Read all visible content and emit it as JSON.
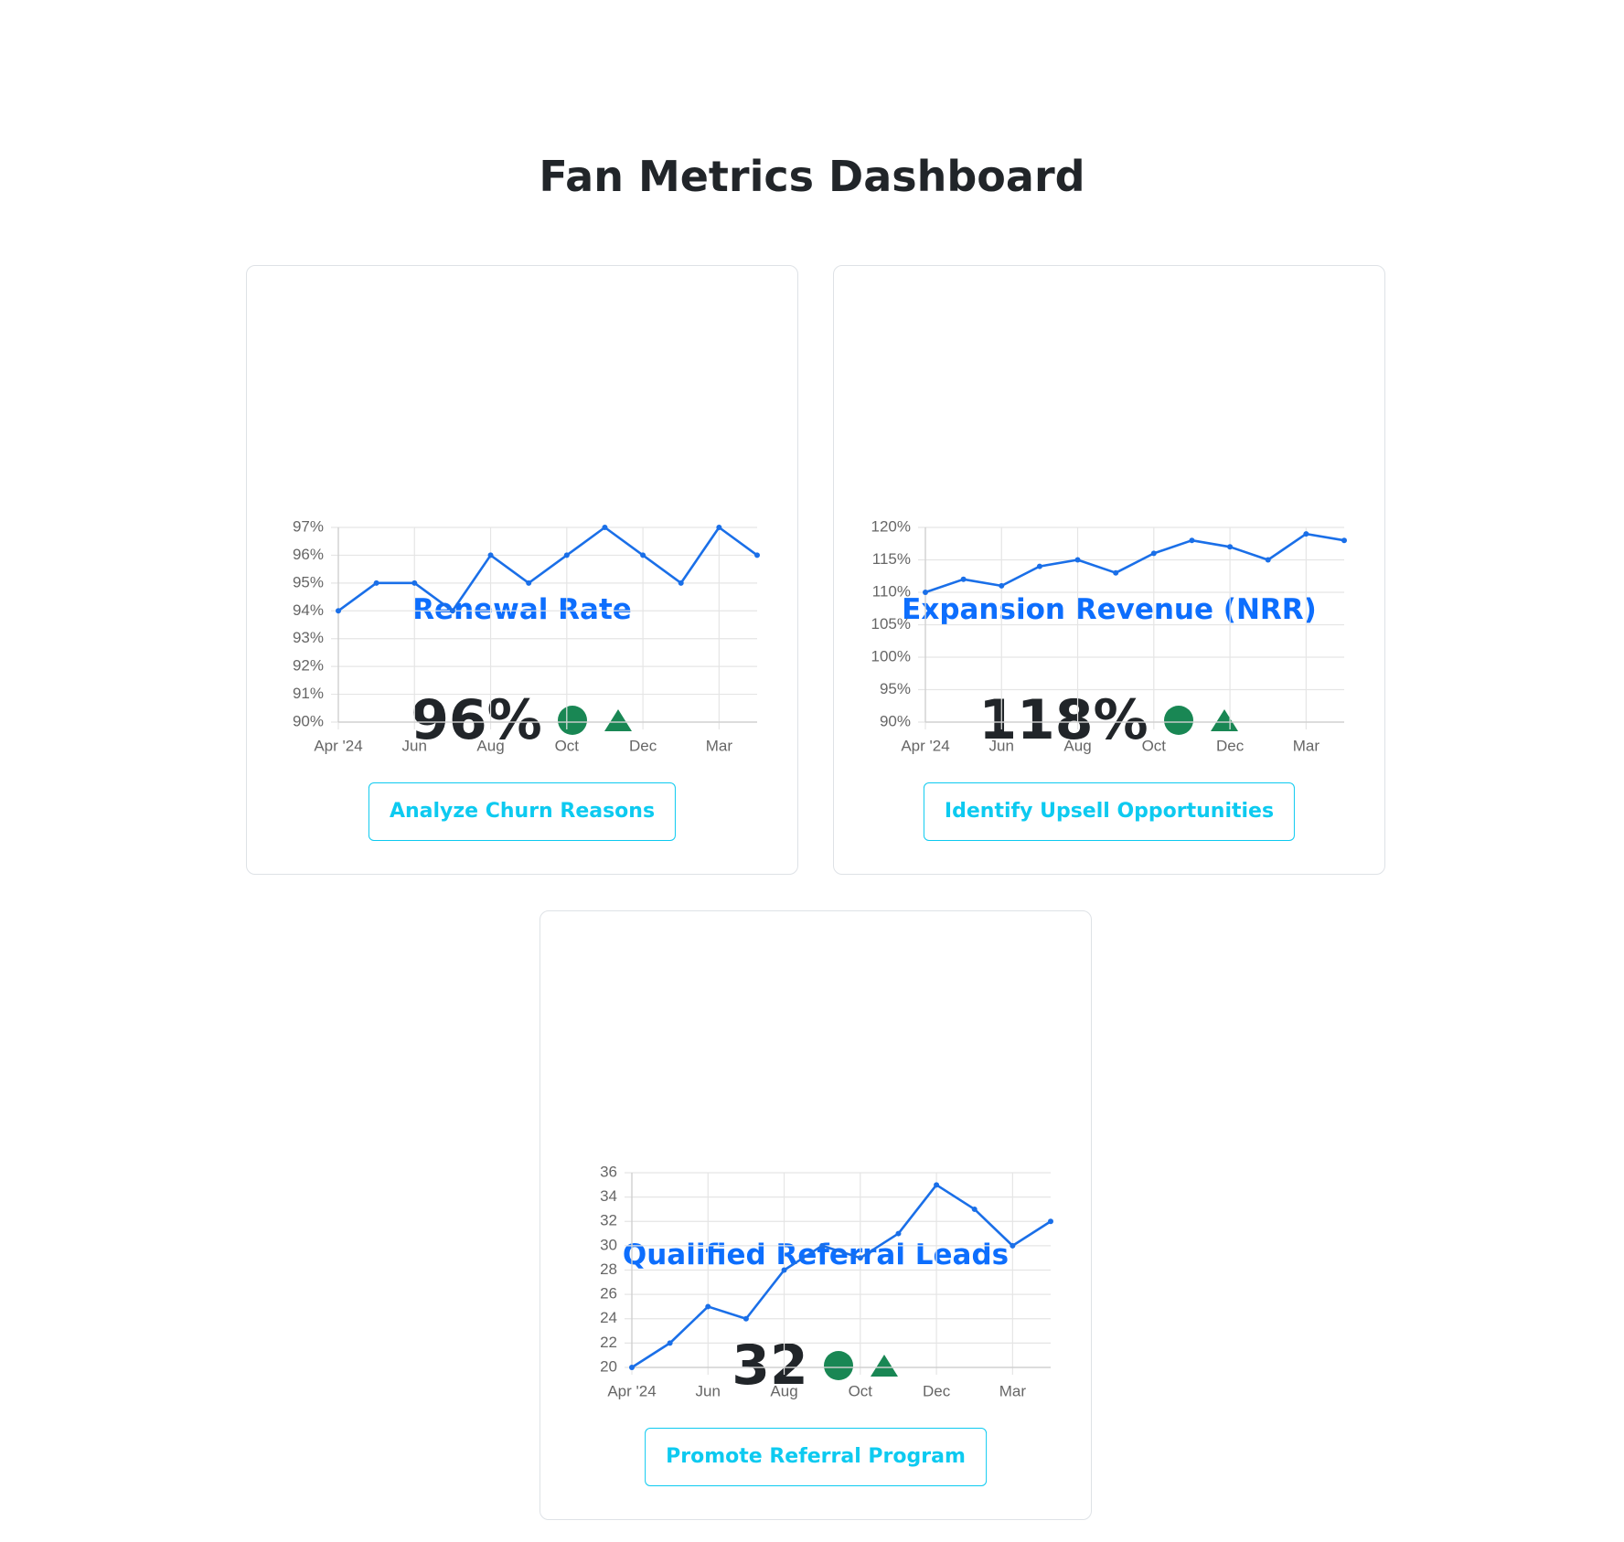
{
  "title": "Fan Metrics Dashboard",
  "chart_data": [
    {
      "type": "line",
      "title": "Renewal Rate",
      "kpi": "96%",
      "action": "Analyze Churn Reasons",
      "categories": [
        "Apr '24",
        null,
        "Jun",
        null,
        "Aug",
        null,
        "Oct",
        null,
        "Dec",
        null,
        "Mar",
        null
      ],
      "values": [
        94,
        95,
        95,
        94,
        96,
        95,
        96,
        97,
        96,
        95,
        97,
        96
      ],
      "color": "#1a6fe8",
      "ylim": [
        90,
        97
      ],
      "yticks": [
        {
          "value": 90,
          "label": "90%"
        },
        {
          "value": 91,
          "label": "91%"
        },
        {
          "value": 92,
          "label": "92%"
        },
        {
          "value": 93,
          "label": "93%"
        },
        {
          "value": 94,
          "label": "94%"
        },
        {
          "value": 95,
          "label": "95%"
        },
        {
          "value": 96,
          "label": "96%"
        },
        {
          "value": 97,
          "label": "97%"
        }
      ],
      "grid": true
    },
    {
      "type": "line",
      "title": "Expansion Revenue (NRR)",
      "kpi": "118%",
      "action": "Identify Upsell Opportunities",
      "categories": [
        "Apr '24",
        null,
        "Jun",
        null,
        "Aug",
        null,
        "Oct",
        null,
        "Dec",
        null,
        "Mar",
        null
      ],
      "values": [
        110,
        112,
        111,
        114,
        115,
        113,
        116,
        118,
        117,
        115,
        119,
        118
      ],
      "color": "#1a6fe8",
      "ylim": [
        90,
        120
      ],
      "yticks": [
        {
          "value": 90,
          "label": "90%"
        },
        {
          "value": 95,
          "label": "95%"
        },
        {
          "value": 100,
          "label": "100%"
        },
        {
          "value": 105,
          "label": "105%"
        },
        {
          "value": 110,
          "label": "110%"
        },
        {
          "value": 115,
          "label": "115%"
        },
        {
          "value": 120,
          "label": "120%"
        }
      ],
      "grid": true
    },
    {
      "type": "line",
      "title": "Qualified Referral Leads",
      "kpi": "32",
      "action": "Promote Referral Program",
      "categories": [
        "Apr '24",
        null,
        "Jun",
        null,
        "Aug",
        null,
        "Oct",
        null,
        "Dec",
        null,
        "Mar",
        null
      ],
      "values": [
        20,
        22,
        25,
        24,
        28,
        30,
        29,
        31,
        35,
        33,
        30,
        32
      ],
      "color": "#1a6fe8",
      "ylim": [
        20,
        36
      ],
      "yticks": [
        20,
        22,
        24,
        26,
        28,
        30,
        32,
        34,
        36
      ],
      "grid": true
    }
  ]
}
